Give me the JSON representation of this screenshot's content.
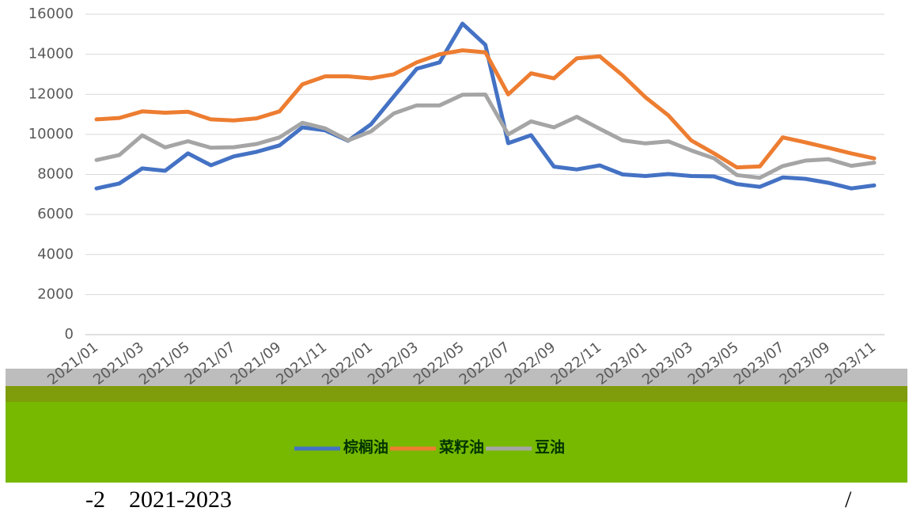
{
  "chart_data": {
    "type": "line",
    "categories": [
      "2021/01",
      null,
      "2021/03",
      null,
      "2021/05",
      null,
      "2021/07",
      null,
      "2021/09",
      null,
      "2021/11",
      null,
      "2022/01",
      null,
      "2022/03",
      null,
      "2022/05",
      null,
      "2022/07",
      null,
      "2022/09",
      null,
      "2022/11",
      null,
      "2023/01",
      null,
      "2023/03",
      null,
      "2023/05",
      null,
      "2023/07",
      null,
      "2023/09",
      null,
      "2023/11"
    ],
    "series": [
      {
        "name": "棕榈油",
        "color": "#4472c4",
        "values": [
          7300,
          7550,
          8300,
          8180,
          9050,
          8460,
          8900,
          9130,
          9450,
          10350,
          10200,
          9680,
          10500,
          11900,
          13280,
          13600,
          15530,
          14470,
          9560,
          9960,
          8390,
          8250,
          8450,
          8000,
          7920,
          8020,
          7920,
          7900,
          7520,
          7380,
          7850,
          7780,
          7580,
          7300,
          7450
        ]
      },
      {
        "name": "菜籽油",
        "color": "#ed7d31",
        "values": [
          10750,
          10820,
          11150,
          11080,
          11130,
          10750,
          10700,
          10800,
          11150,
          12500,
          12900,
          12900,
          12800,
          13000,
          13600,
          14000,
          14200,
          14100,
          12000,
          13050,
          12800,
          13800,
          13900,
          12950,
          11850,
          10950,
          9700,
          9050,
          8350,
          8400,
          9850,
          9600,
          9330,
          9050,
          8800
        ]
      },
      {
        "name": "豆油",
        "color": "#a5a5a5",
        "values": [
          8720,
          8970,
          9950,
          9350,
          9660,
          9330,
          9360,
          9520,
          9850,
          10580,
          10300,
          9700,
          10150,
          11050,
          11450,
          11450,
          11980,
          11990,
          10000,
          10650,
          10350,
          10880,
          10280,
          9700,
          9550,
          9650,
          9200,
          8800,
          7970,
          7830,
          8420,
          8690,
          8760,
          8430,
          8590
        ]
      }
    ],
    "ylim": [
      0,
      16000
    ],
    "yticks": [
      0,
      2000,
      4000,
      6000,
      8000,
      10000,
      12000,
      14000,
      16000
    ],
    "grid": true,
    "legend": "bottom"
  },
  "caption": {
    "left": "-2　2021-2023",
    "right": "/"
  }
}
